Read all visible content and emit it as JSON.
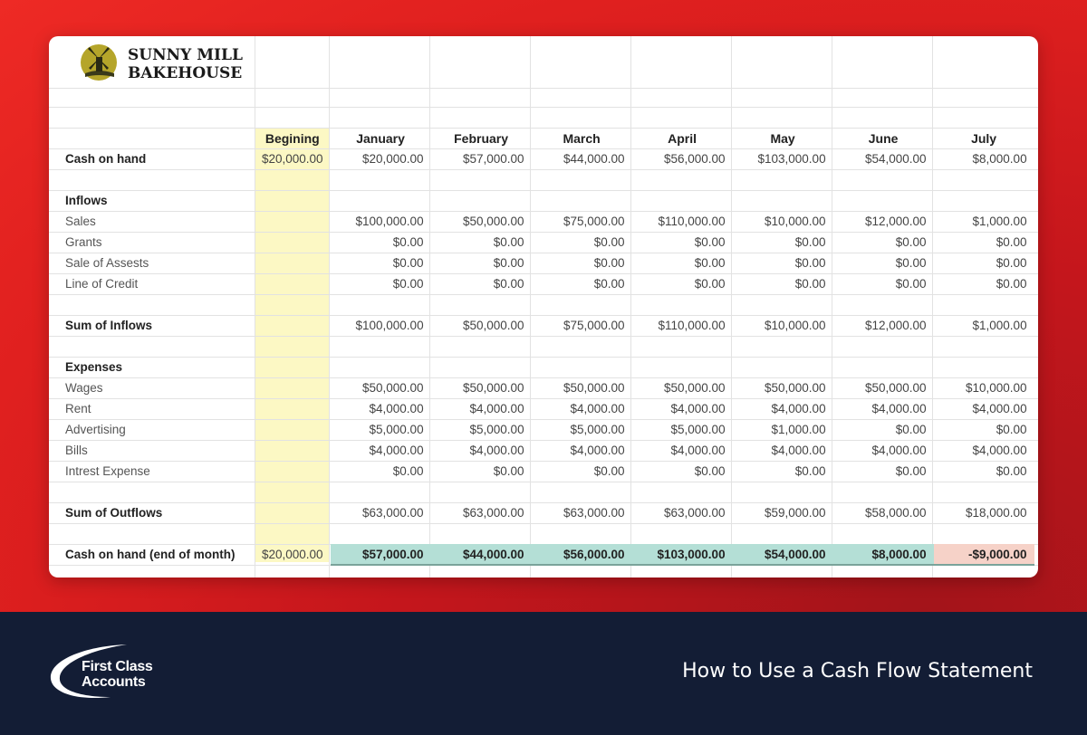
{
  "brand": {
    "name": "SUNNY MILL\nBAKEHOUSE",
    "footer_brand": "First Class\nAccounts",
    "footer_title": "How to Use a Cash Flow Statement"
  },
  "sheet": {
    "columns": [
      "Begining",
      "January",
      "February",
      "March",
      "April",
      "May",
      "June",
      "July"
    ],
    "cash_on_hand": {
      "label": "Cash on hand",
      "values": [
        "$20,000.00",
        "$20,000.00",
        "$57,000.00",
        "$44,000.00",
        "$56,000.00",
        "$103,000.00",
        "$54,000.00",
        "$8,000.00"
      ]
    },
    "inflows": {
      "heading": "Inflows",
      "rows": [
        {
          "label": "Sales",
          "values": [
            "$100,000.00",
            "$50,000.00",
            "$75,000.00",
            "$110,000.00",
            "$10,000.00",
            "$12,000.00",
            "$1,000.00"
          ]
        },
        {
          "label": "Grants",
          "values": [
            "$0.00",
            "$0.00",
            "$0.00",
            "$0.00",
            "$0.00",
            "$0.00",
            "$0.00"
          ]
        },
        {
          "label": "Sale of Assests",
          "values": [
            "$0.00",
            "$0.00",
            "$0.00",
            "$0.00",
            "$0.00",
            "$0.00",
            "$0.00"
          ]
        },
        {
          "label": "Line of Credit",
          "values": [
            "$0.00",
            "$0.00",
            "$0.00",
            "$0.00",
            "$0.00",
            "$0.00",
            "$0.00"
          ]
        }
      ],
      "sum_label": "Sum of Inflows",
      "sum_values": [
        "$100,000.00",
        "$50,000.00",
        "$75,000.00",
        "$110,000.00",
        "$10,000.00",
        "$12,000.00",
        "$1,000.00"
      ]
    },
    "expenses": {
      "heading": "Expenses",
      "rows": [
        {
          "label": "Wages",
          "values": [
            "$50,000.00",
            "$50,000.00",
            "$50,000.00",
            "$50,000.00",
            "$50,000.00",
            "$50,000.00",
            "$10,000.00"
          ]
        },
        {
          "label": "Rent",
          "values": [
            "$4,000.00",
            "$4,000.00",
            "$4,000.00",
            "$4,000.00",
            "$4,000.00",
            "$4,000.00",
            "$4,000.00"
          ]
        },
        {
          "label": "Advertising",
          "values": [
            "$5,000.00",
            "$5,000.00",
            "$5,000.00",
            "$5,000.00",
            "$1,000.00",
            "$0.00",
            "$0.00"
          ]
        },
        {
          "label": "Bills",
          "values": [
            "$4,000.00",
            "$4,000.00",
            "$4,000.00",
            "$4,000.00",
            "$4,000.00",
            "$4,000.00",
            "$4,000.00"
          ]
        },
        {
          "label": "Intrest Expense",
          "values": [
            "$0.00",
            "$0.00",
            "$0.00",
            "$0.00",
            "$0.00",
            "$0.00",
            "$0.00"
          ]
        }
      ],
      "sum_label": "Sum of Outflows",
      "sum_values": [
        "$63,000.00",
        "$63,000.00",
        "$63,000.00",
        "$63,000.00",
        "$59,000.00",
        "$58,000.00",
        "$18,000.00"
      ]
    },
    "end_of_month": {
      "label": "Cash on hand (end of month)",
      "beginning": "$20,000.00",
      "values": [
        "$57,000.00",
        "$44,000.00",
        "$56,000.00",
        "$103,000.00",
        "$54,000.00",
        "$8,000.00",
        "-$9,000.00"
      ]
    }
  },
  "colors": {
    "background_red": "#d81f21",
    "footer_navy": "#131d35",
    "beginning_highlight": "#fcf8c4",
    "end_positive": "#b4dfd6",
    "end_negative": "#f6d2c8"
  }
}
